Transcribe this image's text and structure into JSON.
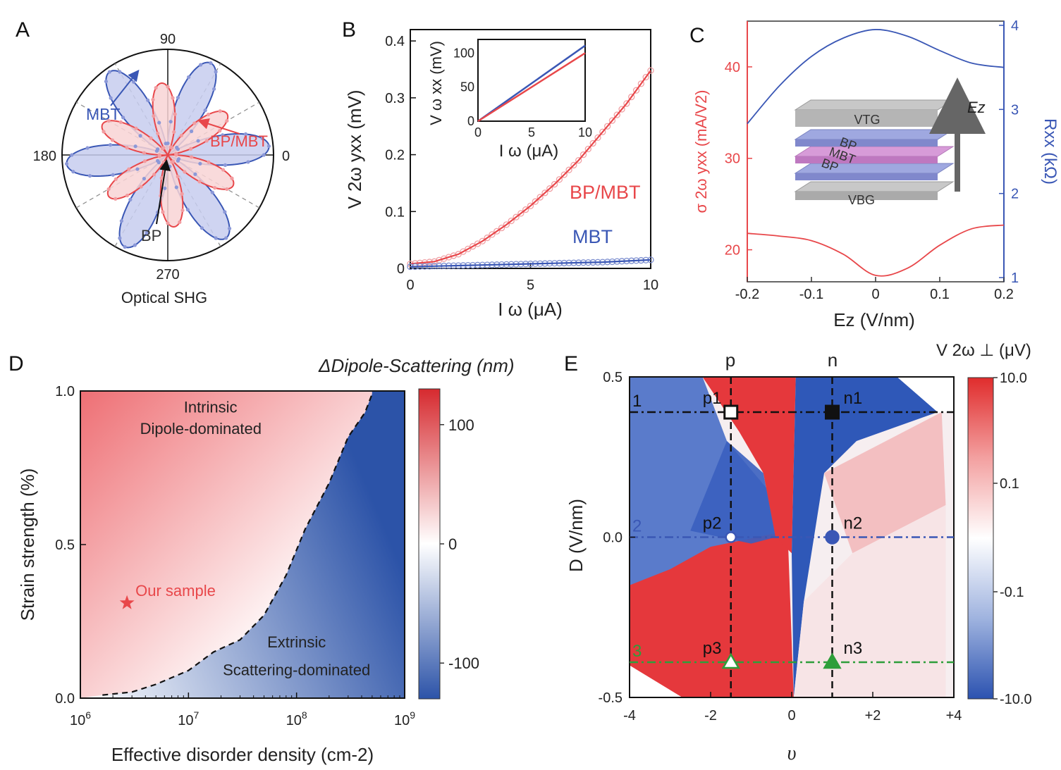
{
  "panel_labels": [
    "A",
    "B",
    "C",
    "D",
    "E"
  ],
  "colors": {
    "red": "#e8474a",
    "blue": "#3a57b5",
    "green": "#2e9e3a",
    "black": "#111111",
    "gray_dash": "#888888"
  },
  "chart_data": [
    {
      "panel": "A",
      "type": "polar",
      "caption": "Optical SHG",
      "angle_ticks": [
        "90",
        "180",
        "0",
        "270"
      ],
      "series": [
        {
          "name": "MBT",
          "petal_angles_deg": [
            0,
            60,
            120,
            180,
            240,
            300
          ],
          "r_max": 1.0
        },
        {
          "name": "BP/MBT",
          "petal_angles_deg": [
            30,
            90,
            150,
            210,
            270,
            330
          ],
          "r_max": 0.65
        },
        {
          "name": "BP",
          "r_max": 0.0
        }
      ],
      "annotations": [
        "MBT",
        "BP/MBT",
        "BP"
      ]
    },
    {
      "panel": "B",
      "type": "line",
      "xlabel": "I ω (μA)",
      "ylabel": "V 2ω yxx (mV)",
      "xlim": [
        0,
        10
      ],
      "ylim": [
        0,
        0.42
      ],
      "xticks": [
        "0",
        "5",
        "10"
      ],
      "yticks": [
        "0",
        "0.1",
        "0.2",
        "0.3",
        "0.4"
      ],
      "series": [
        {
          "name": "BP/MBT",
          "x": [
            0,
            1,
            2,
            3,
            4,
            5,
            6,
            7,
            8,
            9,
            10
          ],
          "y": [
            0.008,
            0.012,
            0.025,
            0.048,
            0.077,
            0.11,
            0.148,
            0.19,
            0.24,
            0.29,
            0.348
          ]
        },
        {
          "name": "MBT",
          "x": [
            0,
            1,
            2,
            3,
            4,
            5,
            6,
            7,
            8,
            9,
            10
          ],
          "y": [
            0.003,
            0.004,
            0.005,
            0.006,
            0.007,
            0.008,
            0.009,
            0.01,
            0.011,
            0.013,
            0.015
          ]
        }
      ],
      "inset": {
        "xlabel": "I ω (μA)",
        "ylabel": "V ω xx (mV)",
        "xlim": [
          0,
          10
        ],
        "ylim": [
          0,
          120
        ],
        "xticks": [
          "0",
          "5",
          "10"
        ],
        "yticks": [
          "0",
          "50",
          "100"
        ],
        "series": [
          {
            "color": "blue",
            "x": [
              0,
              10
            ],
            "y": [
              0,
              111
            ]
          },
          {
            "color": "red",
            "x": [
              0,
              10
            ],
            "y": [
              0,
              100
            ]
          }
        ]
      }
    },
    {
      "panel": "C",
      "type": "line",
      "xlabel": "Ez (V/nm)",
      "ylabel_left": "σ 2ω yxx (mA/V2)",
      "ylabel_right": "Rxx (kΩ)",
      "xlim": [
        -0.2,
        0.2
      ],
      "ylim_left": [
        16.5,
        45
      ],
      "ylim_right": [
        0.95,
        4.05
      ],
      "xticks": [
        "-0.2",
        "-0.1",
        "0",
        "0.1",
        "0.2"
      ],
      "yticks_left": [
        "20",
        "30",
        "40"
      ],
      "yticks_right": [
        "1",
        "2",
        "3",
        "4"
      ],
      "series": [
        {
          "axis": "left",
          "color": "red",
          "x": [
            -0.2,
            -0.15,
            -0.1,
            -0.05,
            0,
            0.05,
            0.1,
            0.15,
            0.2
          ],
          "y": [
            21.8,
            21.5,
            21,
            19.5,
            17.2,
            18,
            20.5,
            22.3,
            22.7
          ]
        },
        {
          "axis": "right",
          "color": "blue",
          "x": [
            -0.2,
            -0.15,
            -0.1,
            -0.05,
            0,
            0.05,
            0.1,
            0.15,
            0.2
          ],
          "y": [
            2.83,
            3.28,
            3.63,
            3.85,
            3.95,
            3.87,
            3.7,
            3.55,
            3.5
          ]
        }
      ],
      "inset_layers": [
        "VTG",
        "BP",
        "MBT",
        "BP",
        "VBG"
      ],
      "inset_arrow_label": "Ez"
    },
    {
      "panel": "D",
      "type": "heatmap",
      "xlabel": "Effective disorder density (cm-2)",
      "ylabel": "Strain strength (%)",
      "x_scale": "log",
      "xlim": [
        1000000.0,
        1000000000.0
      ],
      "ylim": [
        0,
        1.0
      ],
      "xticks": [
        "10^6",
        "10^7",
        "10^8",
        "10^9"
      ],
      "yticks": [
        "0.0",
        "0.5",
        "1.0"
      ],
      "colorbar_title": "ΔDipole-Scattering (nm)",
      "colorbar_range": [
        -130,
        130
      ],
      "colorbar_ticks": [
        "100",
        "0",
        "-100"
      ],
      "boundary": {
        "x": [
          1600000.0,
          3000000.0,
          5000000.0,
          10000000.0,
          17000000.0,
          30000000.0,
          50000000.0,
          80000000.0,
          120000000.0,
          200000000.0,
          300000000.0,
          430000000.0,
          500000000.0
        ],
        "y": [
          0.01,
          0.02,
          0.045,
          0.09,
          0.15,
          0.19,
          0.27,
          0.4,
          0.55,
          0.7,
          0.85,
          0.93,
          0.99
        ]
      },
      "regions": [
        "Intrinsic Dipole-dominated",
        "Extrinsic Scattering-dominated"
      ],
      "marker": {
        "label": "Our sample",
        "x": 2700000.0,
        "y": 0.31
      }
    },
    {
      "panel": "E",
      "type": "heatmap",
      "xlabel": "υ",
      "ylabel": "D (V/nm)",
      "xlim": [
        -4,
        4
      ],
      "ylim": [
        -0.5,
        0.5
      ],
      "xticks": [
        "-4",
        "-2",
        "0",
        "+2",
        "+4"
      ],
      "yticks": [
        "0.5",
        "0.0",
        "-0.5"
      ],
      "top_labels": [
        "p",
        "n"
      ],
      "colorbar_title": "V 2ω ⊥ (μV)",
      "colorbar_ticks": [
        "10.0",
        "0.1",
        "-0.1",
        "-10.0"
      ],
      "lines": [
        {
          "label": "1",
          "D": 0.39,
          "color": "black"
        },
        {
          "label": "2",
          "D": 0.0,
          "color": "blue"
        },
        {
          "label": "3",
          "D": -0.39,
          "color": "green"
        }
      ],
      "points": [
        {
          "label": "p1",
          "x": -1.5,
          "y": 0.39,
          "shape": "open-square"
        },
        {
          "label": "n1",
          "x": 1.0,
          "y": 0.39,
          "shape": "filled-square"
        },
        {
          "label": "p2",
          "x": -1.5,
          "y": 0.0,
          "shape": "open-circle"
        },
        {
          "label": "n2",
          "x": 1.0,
          "y": 0.0,
          "shape": "filled-circle"
        },
        {
          "label": "p3",
          "x": -1.5,
          "y": -0.39,
          "shape": "open-triangle"
        },
        {
          "label": "n3",
          "x": 1.0,
          "y": -0.39,
          "shape": "filled-triangle"
        }
      ]
    }
  ]
}
